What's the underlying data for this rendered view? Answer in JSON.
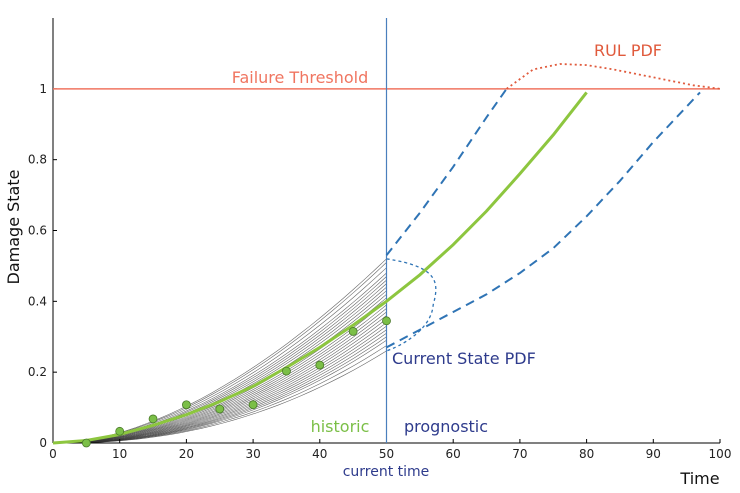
{
  "chart_data": {
    "type": "line",
    "xlabel": "Time",
    "ylabel": "Damage State",
    "xlim": [
      0,
      100
    ],
    "ylim": [
      0,
      1.2
    ],
    "x_ticks": [
      0,
      10,
      20,
      30,
      40,
      50,
      60,
      70,
      80,
      90,
      100
    ],
    "x_tick_labels": [
      "0",
      "10",
      "20",
      "30",
      "40",
      "50",
      "60",
      "70",
      "80",
      "90",
      "100"
    ],
    "y_ticks": [
      0,
      0.2,
      0.4,
      0.6,
      0.8,
      1
    ],
    "y_tick_labels": [
      "0",
      "0.2",
      "0.4",
      "0.6",
      "0.8",
      "1"
    ],
    "failure_threshold": {
      "value": 1,
      "label": "Failure Threshold",
      "color": "#f07560"
    },
    "current_time": {
      "value": 50,
      "label": "current time",
      "color": "#4a7fbd"
    },
    "region_labels": {
      "historic": "historic",
      "prognostic": "prognostic"
    },
    "observations": {
      "color": "#7bbf47",
      "x": [
        5,
        10,
        15,
        20,
        25,
        30,
        35,
        40,
        45,
        50
      ],
      "y": [
        0.0,
        0.033,
        0.068,
        0.108,
        0.096,
        0.108,
        0.203,
        0.22,
        0.315,
        0.345
      ]
    },
    "mean_estimate": {
      "color": "#8dc63f",
      "x": [
        0,
        5,
        10,
        15,
        20,
        25,
        30,
        35,
        40,
        45,
        50,
        55,
        60,
        65,
        70,
        75,
        80
      ],
      "y": [
        0,
        0.007,
        0.024,
        0.05,
        0.08,
        0.117,
        0.16,
        0.213,
        0.27,
        0.333,
        0.4,
        0.475,
        0.56,
        0.655,
        0.76,
        0.87,
        0.99
      ]
    },
    "trajectory_ensemble": {
      "color": "#333333",
      "x_range": [
        1,
        50
      ],
      "end_values": [
        0.26,
        0.275,
        0.29,
        0.3,
        0.31,
        0.32,
        0.33,
        0.34,
        0.35,
        0.36,
        0.37,
        0.38,
        0.39,
        0.4,
        0.41,
        0.42,
        0.43,
        0.44,
        0.45,
        0.46,
        0.47,
        0.48,
        0.495,
        0.51,
        0.52
      ]
    },
    "upper_bound": {
      "color": "#2f74b5",
      "x": [
        50,
        55,
        60,
        65,
        68
      ],
      "y": [
        0.53,
        0.65,
        0.78,
        0.92,
        1.0
      ]
    },
    "lower_bound": {
      "color": "#2f74b5",
      "x": [
        50,
        55,
        60,
        65,
        70,
        75,
        80,
        85,
        90,
        97
      ],
      "y": [
        0.27,
        0.32,
        0.37,
        0.42,
        0.48,
        0.55,
        0.64,
        0.74,
        0.85,
        0.99
      ]
    },
    "current_state_pdf": {
      "label": "Current State PDF",
      "label_color": "#2e3b8c",
      "curve_color": "#2f74b5",
      "y_range": [
        0.26,
        0.52
      ],
      "peak_value": 0.39,
      "peak_time": 57
    },
    "rul_pdf": {
      "label": "RUL PDF",
      "color": "#e05a3c",
      "x": [
        68,
        72,
        76,
        80,
        84,
        88,
        92,
        96,
        100
      ],
      "y": [
        1.0,
        1.055,
        1.07,
        1.067,
        1.055,
        1.04,
        1.025,
        1.01,
        1.0
      ]
    }
  }
}
